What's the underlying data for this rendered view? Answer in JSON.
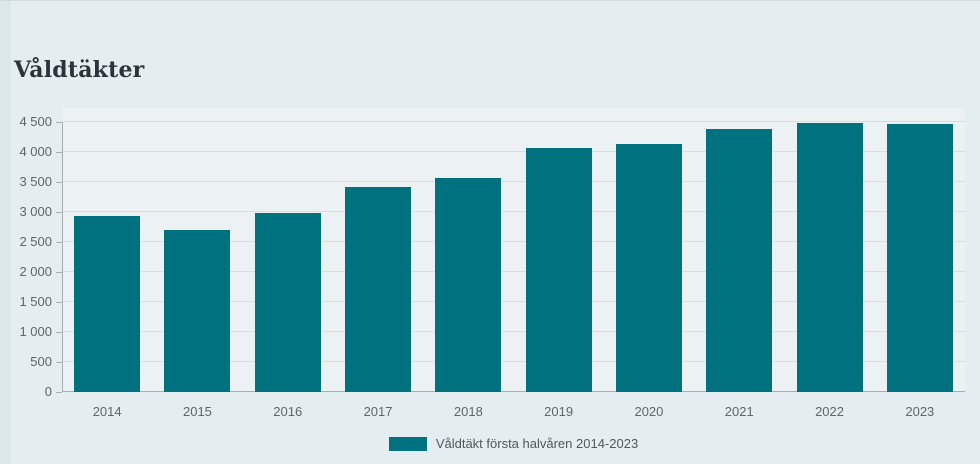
{
  "page": {
    "title": "Våldtäkter"
  },
  "chart_data": {
    "type": "bar",
    "title": "Våldtäkter",
    "categories": [
      "2014",
      "2015",
      "2016",
      "2017",
      "2018",
      "2019",
      "2020",
      "2021",
      "2022",
      "2023"
    ],
    "values": [
      2930,
      2700,
      2980,
      3420,
      3560,
      4060,
      4140,
      4390,
      4480,
      4460
    ],
    "series_name": "Våldtäkt första halvåren 2014-2023",
    "xlabel": "",
    "ylabel": "",
    "ylim": [
      0,
      4500
    ],
    "ytick_values": [
      0,
      500,
      1000,
      1500,
      2000,
      2500,
      3000,
      3500,
      4000,
      4500
    ],
    "ytick_labels": [
      "0",
      "500",
      "1 000",
      "1 500",
      "2 000",
      "2 500",
      "3 000",
      "3 500",
      "4 000",
      "4 500"
    ],
    "grid": true,
    "legend_position": "bottom"
  },
  "legend": {
    "label": "Våldtäkt första halvåren 2014-2023"
  },
  "colors": {
    "background": "#e4edf0",
    "plot_background": "#ecf2f4",
    "gridline": "#d6dee1",
    "axis": "#a6b0b4",
    "bar": "#00717e",
    "label_text": "#5d676b",
    "title_text": "#2d3338"
  }
}
